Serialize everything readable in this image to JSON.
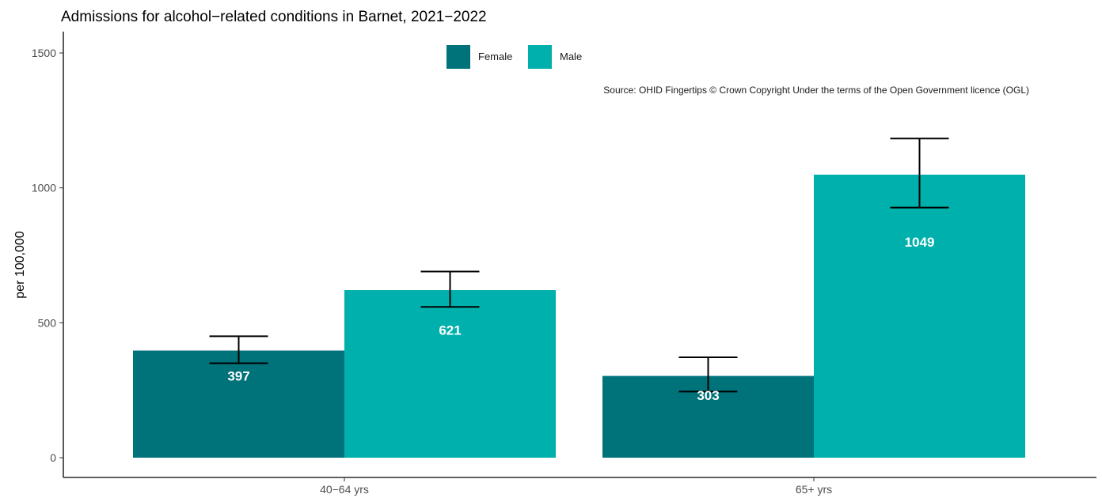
{
  "chart_data": {
    "type": "bar",
    "title": "Admissions for alcohol−related conditions in Barnet, 2021−2022",
    "xlabel": "",
    "ylabel": "per 100,000",
    "ylim": [
      0,
      1550
    ],
    "yticks": [
      0,
      500,
      1000,
      1500
    ],
    "categories": [
      "40−64 yrs",
      "65+ yrs"
    ],
    "series": [
      {
        "name": "Female",
        "color": "#00727A",
        "values": [
          397,
          303
        ],
        "ci_lower": [
          350,
          245
        ],
        "ci_upper": [
          450,
          372
        ]
      },
      {
        "name": "Male",
        "color": "#00B0AC",
        "values": [
          621,
          1049
        ],
        "ci_lower": [
          559,
          927
        ],
        "ci_upper": [
          690,
          1183
        ]
      }
    ],
    "value_labels": [
      [
        "397",
        "303"
      ],
      [
        "621",
        "1049"
      ]
    ],
    "legend_position": "top-center",
    "grid": false,
    "source": "Source: OHID Fingertips © Crown Copyright Under the terms of the Open Government licence (OGL)"
  }
}
